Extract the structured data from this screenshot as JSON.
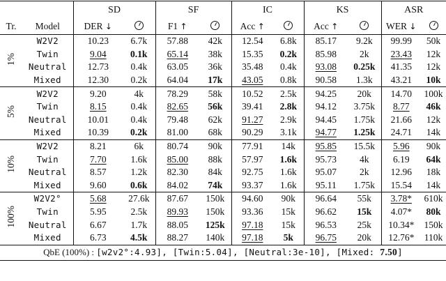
{
  "header": {
    "groups": [
      "SD",
      "SF",
      "IC",
      "KS",
      "ASR"
    ],
    "tr_label": "Tr.",
    "model_label": "Model",
    "metrics": [
      {
        "label": "DER",
        "dir": "↓"
      },
      {
        "label": "F1",
        "dir": "↑"
      },
      {
        "label": "Acc",
        "dir": "↑"
      },
      {
        "label": "Acc",
        "dir": "↑"
      },
      {
        "label": "WER",
        "dir": "↓"
      }
    ]
  },
  "blocks": [
    {
      "tr": "1%",
      "rows": [
        {
          "model": "W2V2",
          "cells": [
            "10.23",
            "6.7k",
            "57.88",
            "42k",
            "12.54",
            "6.8k",
            "85.17",
            "9.2k",
            "99.99",
            "50k"
          ]
        },
        {
          "model": "Twin",
          "cells": [
            "9.04",
            "0.1k",
            "65.14",
            "38k",
            "15.35",
            "0.2k",
            "85.98",
            "2k",
            "23.43",
            "12k"
          ]
        },
        {
          "model": "Neutral",
          "cells": [
            "12.73",
            "0.4k",
            "63.05",
            "36k",
            "35.48",
            "0.4k",
            "93.08",
            "0.25k",
            "41.35",
            "12k"
          ]
        },
        {
          "model": "Mixed",
          "cells": [
            "12.30",
            "0.2k",
            "64.04",
            "17k",
            "43.05",
            "0.8k",
            "90.58",
            "1.3k",
            "43.21",
            "10k"
          ]
        }
      ]
    },
    {
      "tr": "5%",
      "rows": [
        {
          "model": "W2V2",
          "cells": [
            "9.20",
            "4k",
            "78.29",
            "58k",
            "10.52",
            "2.5k",
            "94.25",
            "20k",
            "14.70",
            "100k"
          ]
        },
        {
          "model": "Twin",
          "cells": [
            "8.15",
            "0.4k",
            "82.65",
            "56k",
            "39.41",
            "2.8k",
            "94.12",
            "3.75k",
            "8.77",
            "46k"
          ]
        },
        {
          "model": "Neutral",
          "cells": [
            "10.01",
            "0.4k",
            "79.48",
            "62k",
            "91.27",
            "2.9k",
            "94.45",
            "1.75k",
            "21.66",
            "12k"
          ]
        },
        {
          "model": "Mixed",
          "cells": [
            "10.39",
            "0.2k",
            "81.00",
            "68k",
            "90.29",
            "3.1k",
            "94.77",
            "1.25k",
            "24.71",
            "14k"
          ]
        }
      ]
    },
    {
      "tr": "10%",
      "rows": [
        {
          "model": "W2V2",
          "cells": [
            "8.21",
            "6k",
            "80.74",
            "90k",
            "77.91",
            "14k",
            "95.85",
            "15.5k",
            "5.96",
            "90k"
          ]
        },
        {
          "model": "Twin",
          "cells": [
            "7.70",
            "1.6k",
            "85.00",
            "88k",
            "57.97",
            "1.6k",
            "95.73",
            "4k",
            "6.19",
            "64k"
          ]
        },
        {
          "model": "Neutral",
          "cells": [
            "8.57",
            "1.2k",
            "82.30",
            "84k",
            "92.75",
            "1.6k",
            "95.07",
            "2k",
            "12.96",
            "18k"
          ]
        },
        {
          "model": "Mixed",
          "cells": [
            "9.60",
            "0.6k",
            "84.02",
            "74k",
            "93.37",
            "1.6k",
            "95.11",
            "1.75k",
            "15.54",
            "14k"
          ]
        }
      ]
    },
    {
      "tr": "100%",
      "rows": [
        {
          "model": "W2V2°",
          "cells": [
            "5.68",
            "27.6k",
            "87.67",
            "150k",
            "94.60",
            "90k",
            "96.64",
            "55k",
            "3.78*",
            "610k"
          ]
        },
        {
          "model": "Twin",
          "cells": [
            "5.95",
            "2.5k",
            "89.93",
            "150k",
            "93.36",
            "15k",
            "96.62",
            "15k",
            "4.07*",
            "80k"
          ]
        },
        {
          "model": "Neutral",
          "cells": [
            "6.67",
            "1.7k",
            "88.05",
            "125k",
            "97.18",
            "15k",
            "96.53",
            "25k",
            "10.34*",
            "150k"
          ]
        },
        {
          "model": "Mixed",
          "cells": [
            "6.73",
            "4.5k",
            "88.27",
            "140k",
            "97.18",
            "5k",
            "96.75",
            "20k",
            "12.76*",
            "110k"
          ]
        }
      ]
    }
  ],
  "footer": {
    "prefix": "QbE (100%) : ",
    "items": [
      {
        "text": "[w2v2°:4.93]",
        "bold_part": ""
      },
      {
        "text": "[Twin:5.04]",
        "bold_part": ""
      },
      {
        "text": "[Neutral:3e-10]",
        "bold_part": ""
      },
      {
        "text": "[Mixed: ",
        "bold_part": "7.50",
        "suffix": "]"
      }
    ]
  },
  "styles": {
    "underline": [
      [
        0,
        1,
        0
      ],
      [
        0,
        1,
        2
      ],
      [
        0,
        2,
        6
      ],
      [
        0,
        3,
        4
      ],
      [
        0,
        1,
        8
      ],
      [
        1,
        1,
        0
      ],
      [
        1,
        1,
        2
      ],
      [
        1,
        2,
        4
      ],
      [
        1,
        3,
        6
      ],
      [
        1,
        1,
        8
      ],
      [
        2,
        1,
        0
      ],
      [
        2,
        1,
        2
      ],
      [
        2,
        0,
        6
      ],
      [
        2,
        0,
        8
      ],
      [
        3,
        0,
        0
      ],
      [
        3,
        1,
        2
      ],
      [
        3,
        2,
        4
      ],
      [
        3,
        3,
        4
      ],
      [
        3,
        3,
        6
      ],
      [
        3,
        0,
        8
      ]
    ],
    "bold": [
      [
        0,
        1,
        1
      ],
      [
        0,
        3,
        3
      ],
      [
        0,
        1,
        5
      ],
      [
        0,
        2,
        7
      ],
      [
        0,
        3,
        9
      ],
      [
        1,
        3,
        1
      ],
      [
        1,
        1,
        3
      ],
      [
        1,
        1,
        5
      ],
      [
        1,
        3,
        7
      ],
      [
        1,
        1,
        9
      ],
      [
        2,
        3,
        1
      ],
      [
        2,
        3,
        3
      ],
      [
        2,
        1,
        5
      ],
      [
        2,
        1,
        9
      ],
      [
        3,
        3,
        1
      ],
      [
        3,
        2,
        3
      ],
      [
        3,
        3,
        5
      ],
      [
        3,
        1,
        7
      ],
      [
        3,
        1,
        9
      ]
    ]
  }
}
